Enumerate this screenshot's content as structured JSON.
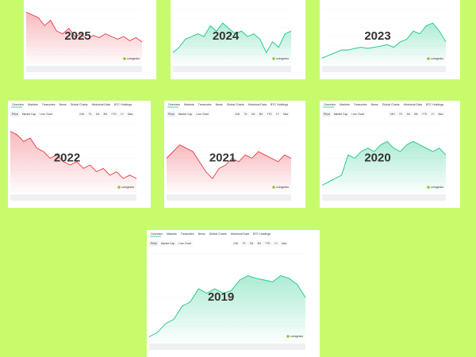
{
  "tabs": [
    "Overview",
    "Markets",
    "Treasuries",
    "News",
    "Global Charts",
    "Historical Data",
    "BTC Holdings"
  ],
  "buttons": [
    "Price",
    "Market Cap",
    "Line Chart",
    "24H",
    "7D",
    "1M",
    "3M",
    "YTD",
    "1Y",
    "Max"
  ],
  "brand": "coingecko",
  "panels": [
    {
      "year": "2025",
      "color": "#ea3943",
      "tabs": false,
      "values": [
        95,
        90,
        85,
        70,
        80,
        60,
        55,
        65,
        50,
        55,
        45,
        52,
        48,
        55,
        50,
        45,
        50,
        42,
        48,
        40
      ]
    },
    {
      "year": "2024",
      "color": "#16c784",
      "tabs": false,
      "values": [
        20,
        30,
        45,
        50,
        55,
        50,
        70,
        60,
        75,
        65,
        55,
        60,
        50,
        55,
        45,
        20,
        40,
        30,
        55,
        60
      ]
    },
    {
      "year": "2023",
      "color": "#16c784",
      "tabs": false,
      "values": [
        10,
        15,
        20,
        25,
        25,
        28,
        30,
        28,
        30,
        32,
        35,
        30,
        40,
        45,
        60,
        55,
        70,
        75,
        60,
        40
      ]
    },
    {
      "year": "2022",
      "color": "#ea3943",
      "tabs": true,
      "values": [
        90,
        85,
        75,
        80,
        65,
        60,
        50,
        55,
        45,
        40,
        45,
        35,
        40,
        30,
        35,
        25,
        30,
        20,
        25,
        20
      ]
    },
    {
      "year": "2021",
      "color": "#ea3943",
      "tabs": true,
      "values": [
        50,
        60,
        70,
        65,
        60,
        45,
        30,
        20,
        35,
        40,
        50,
        45,
        55,
        50,
        60,
        55,
        50,
        45,
        55,
        50
      ]
    },
    {
      "year": "2020",
      "color": "#16c784",
      "tabs": true,
      "values": [
        10,
        15,
        20,
        25,
        55,
        50,
        60,
        65,
        60,
        70,
        75,
        65,
        60,
        70,
        75,
        70,
        65,
        60,
        65,
        55
      ]
    },
    {
      "year": "2019",
      "color": "#16c784",
      "tabs": true,
      "values": [
        5,
        10,
        20,
        25,
        40,
        45,
        60,
        55,
        60,
        55,
        58,
        70,
        75,
        72,
        70,
        68,
        75,
        72,
        65,
        50
      ]
    }
  ]
}
